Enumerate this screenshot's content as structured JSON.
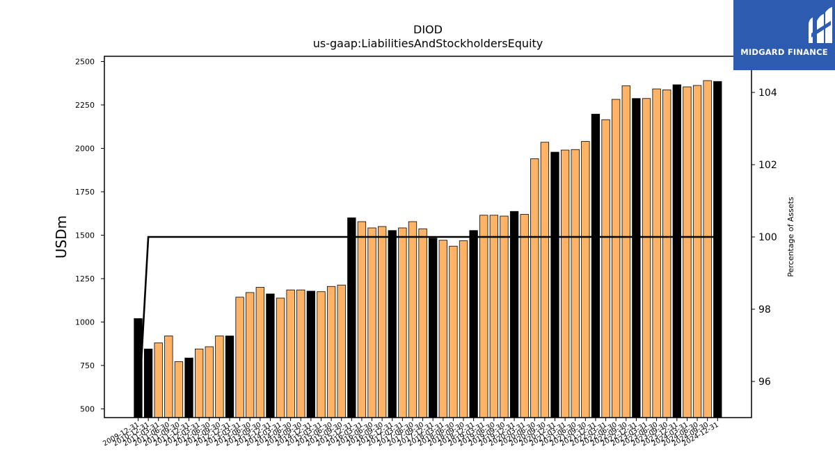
{
  "chart_data": {
    "type": "bar",
    "title": "DIOD",
    "subtitle": "us-gaap:LiabilitiesAndStockholdersEquity",
    "ylabel": "USDm",
    "y2label": "Percentage of Assets",
    "ylim": [
      450,
      2530
    ],
    "y2lim": [
      95.0,
      105.0
    ],
    "yticks": [
      500,
      750,
      1000,
      1250,
      1500,
      1750,
      2000,
      2250,
      2500
    ],
    "y2ticks": [
      96,
      98,
      100,
      102,
      104
    ],
    "categories": [
      "2009-12-31",
      "2010-12-31",
      "2011-03-31",
      "2011-06-30",
      "2011-09-30",
      "2011-12-31",
      "2012-03-31",
      "2012-06-30",
      "2012-09-30",
      "2012-12-31",
      "2013-03-31",
      "2013-06-30",
      "2013-09-30",
      "2013-12-31",
      "2014-03-31",
      "2014-06-30",
      "2014-09-30",
      "2014-12-31",
      "2015-03-31",
      "2015-06-30",
      "2015-09-30",
      "2015-12-31",
      "2016-03-31",
      "2016-06-30",
      "2016-09-30",
      "2016-12-31",
      "2017-03-31",
      "2017-06-30",
      "2017-09-30",
      "2017-12-31",
      "2018-03-31",
      "2018-06-30",
      "2018-09-30",
      "2018-12-31",
      "2019-03-31",
      "2019-06-30",
      "2019-09-30",
      "2019-12-31",
      "2020-03-31",
      "2020-06-30",
      "2020-09-30",
      "2020-12-31",
      "2021-03-31",
      "2021-06-30",
      "2021-09-30",
      "2021-12-31",
      "2022-03-31",
      "2022-06-30",
      "2022-09-30",
      "2022-12-31",
      "2023-03-31",
      "2023-06-30",
      "2023-09-30",
      "2023-12-31",
      "2024-03-31",
      "2024-06-30",
      "2024-09-30",
      "2024-12-31"
    ],
    "xtick_labels": [
      "2009-12-31",
      "2010-12-31",
      "2011-03-31",
      "2011-06-30",
      "2011-09-30",
      "2011-12-31",
      "2012-03-31",
      "2012-06-30",
      "2012-09-30",
      "2012-12-31",
      "2013-03-31",
      "2013-06-30",
      "2013-09-30",
      "2013-12-31",
      "2014-03-31",
      "2014-06-30",
      "2014-09-30",
      "2014-12-31",
      "2015-03-31",
      "2015-06-30",
      "2015-09-30",
      "2015-12-31",
      "2016-03-31",
      "2016-06-30",
      "2016-09-30",
      "2016-12-31",
      "2017-03-31",
      "2017-06-30",
      "2017-09-30",
      "2017-12-31",
      "2018-03-31",
      "2018-06-30",
      "2018-09-30",
      "2018-12-31",
      "2019-03-31",
      "2019-06-30",
      "2019-09-30",
      "2019-12-31",
      "2020-03-31",
      "2020-06-30",
      "2020-09-30",
      "2020-12-31",
      "2021-03-31",
      "2021-06-30",
      "2021-09-30",
      "2021-12-31",
      "2022-03-31",
      "2022-06-30",
      "2022-09-30",
      "2022-12-31",
      "2023-03-31",
      "2023-06-30",
      "2023-09-30",
      "2023-12-31",
      "2024-03-31",
      "2024-06-30",
      "2024-09-30",
      "2024-12-31"
    ],
    "series": [
      {
        "values": [
          1020,
          845,
          880,
          920,
          772,
          793,
          845,
          858,
          920,
          920,
          1143,
          1170,
          1200,
          1162,
          1138,
          1185,
          1185,
          1178,
          1175,
          1205,
          1213,
          1600,
          1578,
          1542,
          1550,
          1527,
          1542,
          1578,
          1537,
          1483,
          1471,
          1437,
          1468,
          1527,
          1615,
          1615,
          1610,
          1637,
          1620,
          1940,
          2035,
          1978,
          1990,
          1993,
          2040,
          2197,
          2165,
          2282,
          2360,
          2287,
          2287,
          2342,
          2337,
          2366,
          2354,
          2362,
          2390,
          2385
        ],
        "highlight": [
          true,
          true,
          false,
          false,
          false,
          true,
          false,
          false,
          false,
          true,
          false,
          false,
          false,
          true,
          false,
          false,
          false,
          true,
          false,
          false,
          false,
          true,
          false,
          false,
          false,
          true,
          false,
          false,
          false,
          true,
          false,
          false,
          false,
          true,
          false,
          false,
          false,
          true,
          false,
          false,
          false,
          true,
          false,
          false,
          false,
          true,
          false,
          false,
          false,
          true,
          false,
          false,
          false,
          true,
          false,
          false,
          false,
          true
        ]
      },
      {
        "axis": "right",
        "values": [
          94.5,
          100,
          100,
          100,
          100,
          100,
          100,
          100,
          100,
          100,
          100,
          100,
          100,
          100,
          100,
          100,
          100,
          100,
          100,
          100,
          100,
          100,
          100,
          100,
          100,
          100,
          100,
          100,
          100,
          100,
          100,
          100,
          100,
          100,
          100,
          100,
          100,
          100,
          100,
          100,
          100,
          100,
          100,
          100,
          100,
          100,
          100,
          100,
          100,
          100,
          100,
          100,
          100,
          100,
          100,
          100,
          100,
          100
        ]
      }
    ],
    "colors": {
      "bar": "#ffb366",
      "bar_highlight": "#000000",
      "bar_edge": "#000000",
      "line": "#000000"
    },
    "grid": false
  },
  "logo": {
    "text": "MIDGARD FINANCE"
  }
}
